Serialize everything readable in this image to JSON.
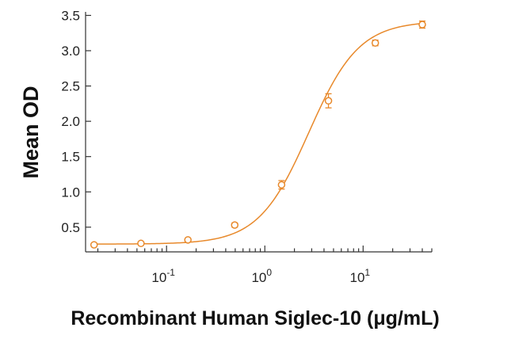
{
  "chart_data": {
    "type": "scatter",
    "xlabel": "Recombinant Human Siglec-10 (μg/mL)",
    "ylabel": "Mean OD",
    "x_scale": "log",
    "xlim": [
      0.015,
      50
    ],
    "ylim": [
      0.15,
      3.55
    ],
    "x_ticks": [
      {
        "value": 0.1,
        "base": "10",
        "exp": "-1"
      },
      {
        "value": 1,
        "base": "10",
        "exp": "0"
      },
      {
        "value": 10,
        "base": "10",
        "exp": "1"
      }
    ],
    "y_ticks": [
      {
        "value": 0.5,
        "label": "0.5"
      },
      {
        "value": 1.0,
        "label": "1.0"
      },
      {
        "value": 1.5,
        "label": "1.5"
      },
      {
        "value": 2.0,
        "label": "2.0"
      },
      {
        "value": 2.5,
        "label": "2.5"
      },
      {
        "value": 3.0,
        "label": "3.0"
      },
      {
        "value": 3.5,
        "label": "3.5"
      }
    ],
    "color": "#E8892B",
    "series": [
      {
        "x": [
          0.0183,
          0.0549,
          0.165,
          0.494,
          1.48,
          4.44,
          13.3,
          40
        ],
        "y": [
          0.25,
          0.27,
          0.32,
          0.53,
          1.1,
          2.29,
          3.11,
          3.37
        ],
        "error": [
          0.02,
          0.02,
          0.02,
          0.03,
          0.06,
          0.1,
          0.04,
          0.05
        ]
      }
    ],
    "fit": {
      "model": "4PL",
      "bottom": 0.26,
      "top": 3.42,
      "ec50": 2.8,
      "hill": 1.7
    }
  }
}
